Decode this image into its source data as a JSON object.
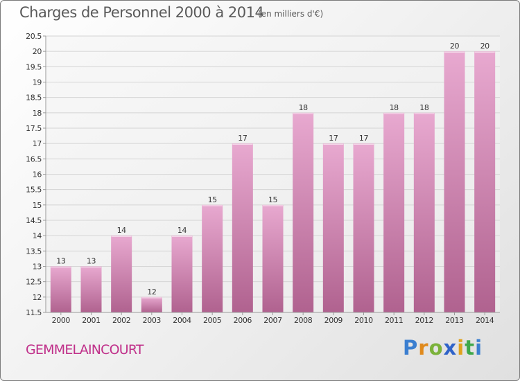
{
  "title": "Charges de Personnel 2000 à 2014",
  "subtitle": "(en milliers d'€)",
  "location": "GEMMELAINCOURT",
  "logo": {
    "letters": [
      "P",
      "r",
      "o",
      "x",
      "i",
      "t",
      "i"
    ],
    "colors": [
      "#3b7fd0",
      "#e08a1c",
      "#7bb23a",
      "#2f63c9",
      "#e0a21c",
      "#3fa84a",
      "#3b7fd0"
    ]
  },
  "colors": {
    "bar_top": "#e8a9d0",
    "bar_bottom": "#b0628f",
    "grid": "#d4d4d4",
    "axis": "#9a9a9a"
  },
  "chart_data": {
    "type": "bar",
    "categories": [
      "2000",
      "2001",
      "2002",
      "2003",
      "2004",
      "2005",
      "2006",
      "2007",
      "2008",
      "2009",
      "2010",
      "2011",
      "2012",
      "2013",
      "2014"
    ],
    "values": [
      13,
      13,
      14,
      12,
      14,
      15,
      17,
      15,
      18,
      17,
      17,
      18,
      18,
      20,
      20
    ],
    "value_labels": [
      "13",
      "13",
      "14",
      "12",
      "14",
      "15",
      "17",
      "15",
      "18",
      "17",
      "17",
      "18",
      "18",
      "20",
      "20"
    ],
    "title": "Charges de Personnel 2000 à 2014",
    "subtitle": "(en milliers d'€)",
    "ylim": [
      11.5,
      20.5
    ],
    "yticks": [
      11.5,
      12,
      12.5,
      13,
      13.5,
      14,
      14.5,
      15,
      15.5,
      16,
      16.5,
      17,
      17.5,
      18,
      18.5,
      19,
      19.5,
      20,
      20.5
    ],
    "ytick_labels": [
      "11.5",
      "12",
      "12.5",
      "13",
      "13.5",
      "14",
      "14.5",
      "15",
      "15.5",
      "16",
      "16.5",
      "17",
      "17.5",
      "18",
      "18.5",
      "19",
      "19.5",
      "20",
      "20.5"
    ],
    "grid": true
  }
}
